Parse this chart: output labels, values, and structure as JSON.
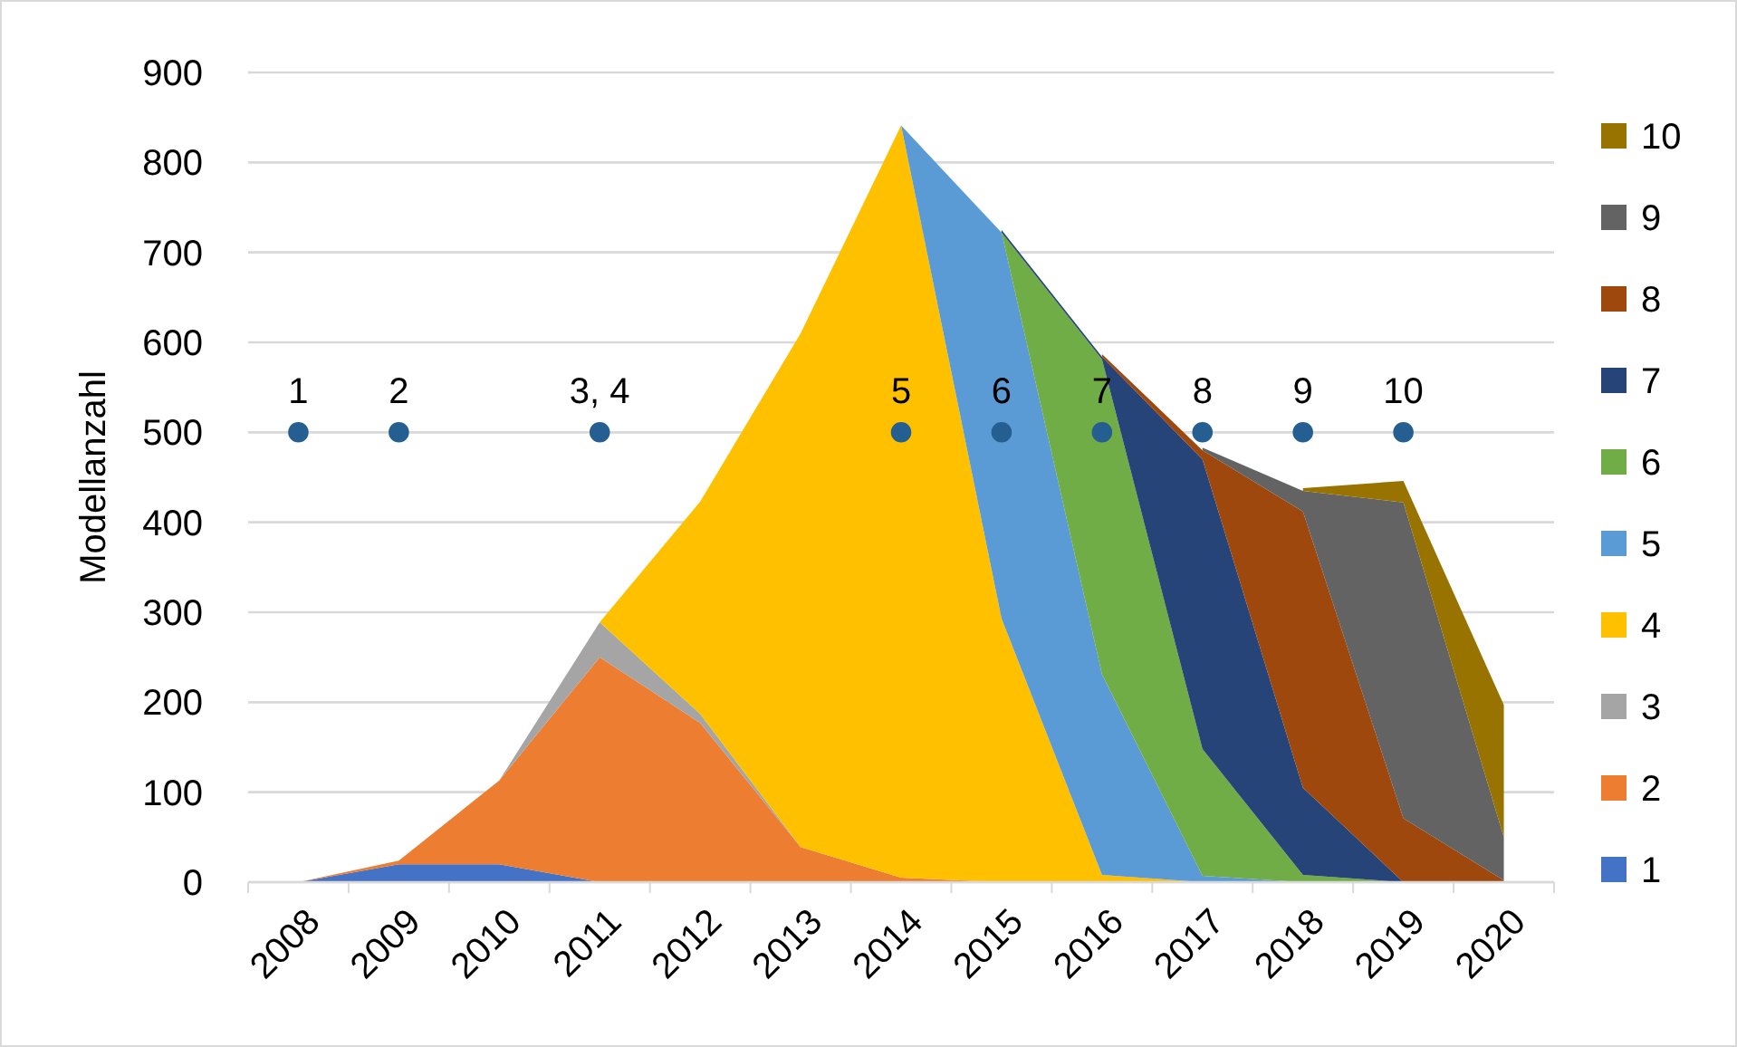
{
  "chart_data": {
    "type": "area",
    "stacked": true,
    "ylabel": "Modellanzahl",
    "categories": [
      "2008",
      "2009",
      "2010",
      "2011",
      "2012",
      "2013",
      "2014",
      "2015",
      "2016",
      "2017",
      "2018",
      "2019",
      "2020"
    ],
    "ylim": [
      0,
      900
    ],
    "yticks": [
      0,
      100,
      200,
      300,
      400,
      500,
      600,
      700,
      800,
      900
    ],
    "grid": "y",
    "legend": "right",
    "series": [
      {
        "name": "1",
        "color": "#4472c4",
        "values": [
          0,
          20,
          20,
          0,
          null,
          null,
          null,
          null,
          null,
          null,
          null,
          null,
          null
        ]
      },
      {
        "name": "2",
        "color": "#ed7d31",
        "values": [
          0,
          4,
          93,
          250,
          177,
          39,
          5,
          0,
          null,
          null,
          null,
          null,
          null
        ]
      },
      {
        "name": "3",
        "color": "#a5a5a5",
        "values": [
          null,
          null,
          0,
          39,
          10,
          0,
          null,
          null,
          null,
          null,
          null,
          null,
          null
        ]
      },
      {
        "name": "4",
        "color": "#ffc000",
        "values": [
          null,
          null,
          null,
          0,
          236,
          571,
          836,
          293,
          8,
          0,
          null,
          null,
          null
        ]
      },
      {
        "name": "5",
        "color": "#5b9bd5",
        "values": [
          null,
          null,
          null,
          null,
          null,
          null,
          0,
          429,
          223,
          7,
          0,
          null,
          null
        ]
      },
      {
        "name": "6",
        "color": "#70ad47",
        "values": [
          null,
          null,
          null,
          null,
          null,
          null,
          null,
          0,
          350,
          141,
          8,
          0,
          null
        ]
      },
      {
        "name": "7",
        "color": "#264478",
        "values": [
          null,
          null,
          null,
          null,
          null,
          null,
          null,
          3,
          3,
          322,
          97,
          0,
          null
        ]
      },
      {
        "name": "8",
        "color": "#9e480e",
        "values": [
          null,
          null,
          null,
          null,
          null,
          null,
          null,
          null,
          3,
          10,
          307,
          71,
          2
        ]
      },
      {
        "name": "9",
        "color": "#636363",
        "values": [
          null,
          null,
          null,
          null,
          null,
          null,
          null,
          null,
          null,
          3,
          23,
          351,
          48
        ]
      },
      {
        "name": "10",
        "color": "#997300",
        "values": [
          null,
          null,
          null,
          null,
          null,
          null,
          null,
          null,
          null,
          null,
          3,
          24,
          147
        ]
      },
      {
        "type": "scatter",
        "color": "#255e91",
        "marker": "circle",
        "values": [
          500,
          500,
          null,
          500,
          null,
          null,
          500,
          500,
          500,
          500,
          500,
          500,
          null
        ]
      }
    ],
    "annotations": [
      {
        "text": "1",
        "x": "2008",
        "y": 500
      },
      {
        "text": "2",
        "x": "2009",
        "y": 500
      },
      {
        "text": "3, 4",
        "x": "2011",
        "y": 500
      },
      {
        "text": "5",
        "x": "2014",
        "y": 500
      },
      {
        "text": "6",
        "x": "2015",
        "y": 500
      },
      {
        "text": "7",
        "x": "2016",
        "y": 500
      },
      {
        "text": "8",
        "x": "2017",
        "y": 500
      },
      {
        "text": "9",
        "x": "2018",
        "y": 500
      },
      {
        "text": "10",
        "x": "2019",
        "y": 500
      }
    ]
  }
}
